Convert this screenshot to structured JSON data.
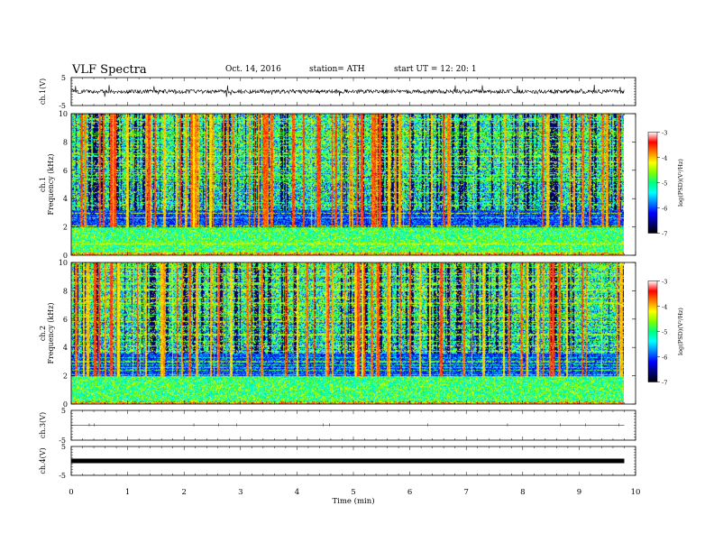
{
  "header": {
    "title": "VLF  Spectra",
    "date": "Oct. 14,  2016",
    "station": "station= ATH",
    "start": "start  UT  =   12: 20: 1"
  },
  "chart_data": [
    {
      "type": "line",
      "title": "",
      "ylabel": "ch.1(V)",
      "ylim": [
        -5,
        5
      ],
      "yticks": [
        "5",
        "-5"
      ],
      "xlim": [
        0,
        10
      ],
      "description_values": {
        "baseline": 0,
        "noise_amplitude": 1.2
      }
    },
    {
      "type": "heatmap",
      "ylabel_channel": "ch.1",
      "ylabel": "Frequency  (kHz)",
      "ylim": [
        0,
        10
      ],
      "yticks": [
        "0",
        "2",
        "4",
        "6",
        "8",
        "10"
      ],
      "xlim": [
        0,
        10
      ],
      "colorbar": {
        "label": "log(PSD)(V²/Hz)",
        "range": [
          -7,
          -3
        ],
        "ticks": [
          "-3",
          "-4",
          "-5",
          "-6",
          "-7"
        ]
      }
    },
    {
      "type": "heatmap",
      "ylabel_channel": "ch.2",
      "ylabel": "Frequency  (kHz)",
      "ylim": [
        0,
        10
      ],
      "yticks": [
        "0",
        "2",
        "4",
        "6",
        "8",
        "10"
      ],
      "xlim": [
        0,
        10
      ],
      "colorbar": {
        "label": "log(PSD)(V²/Hz)",
        "range": [
          -7,
          -3
        ],
        "ticks": [
          "-3",
          "-4",
          "-5",
          "-6",
          "-7"
        ]
      }
    },
    {
      "type": "line",
      "ylabel": "ch.3(V)",
      "ylim": [
        -5,
        5
      ],
      "yticks": [
        "5",
        "-5"
      ],
      "xlim": [
        0,
        10
      ],
      "description_values": {
        "baseline": 0
      }
    },
    {
      "type": "line",
      "ylabel": "ch.4(V)",
      "ylim": [
        -5,
        5
      ],
      "yticks": [
        "5",
        "-5"
      ],
      "xlim": [
        0,
        10
      ],
      "xlabel": "Time  (min)",
      "xticks": [
        "0",
        "1",
        "2",
        "3",
        "4",
        "5",
        "6",
        "7",
        "8",
        "9",
        "10"
      ],
      "description_values": {
        "baseline": 0
      }
    }
  ],
  "colors": {
    "scale": [
      "#000000",
      "#00007f",
      "#0000ff",
      "#0080ff",
      "#00ffff",
      "#00ff80",
      "#80ff00",
      "#ffff00",
      "#ff8000",
      "#ff0000",
      "#ffffff"
    ]
  }
}
